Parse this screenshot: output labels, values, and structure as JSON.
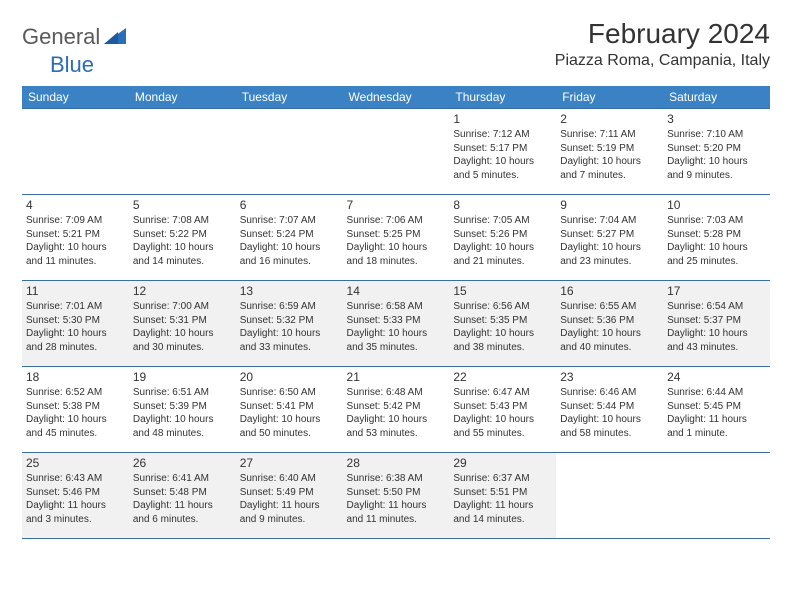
{
  "logo": {
    "text1": "General",
    "text2": "Blue",
    "accent": "#2a6db8",
    "gray": "#5a5a5a"
  },
  "title": "February 2024",
  "location": "Piazza Roma, Campania, Italy",
  "colors": {
    "header_bg": "#3b82c4",
    "header_fg": "#ffffff",
    "rule": "#3b6ea0",
    "shaded_bg": "#f1f1f1",
    "text": "#333333"
  },
  "weekdays": [
    "Sunday",
    "Monday",
    "Tuesday",
    "Wednesday",
    "Thursday",
    "Friday",
    "Saturday"
  ],
  "weeks": [
    {
      "shaded": false,
      "days": [
        null,
        null,
        null,
        null,
        {
          "n": "1",
          "sunrise": "7:12 AM",
          "sunset": "5:17 PM",
          "daylight": "10 hours and 5 minutes."
        },
        {
          "n": "2",
          "sunrise": "7:11 AM",
          "sunset": "5:19 PM",
          "daylight": "10 hours and 7 minutes."
        },
        {
          "n": "3",
          "sunrise": "7:10 AM",
          "sunset": "5:20 PM",
          "daylight": "10 hours and 9 minutes."
        }
      ]
    },
    {
      "shaded": false,
      "days": [
        {
          "n": "4",
          "sunrise": "7:09 AM",
          "sunset": "5:21 PM",
          "daylight": "10 hours and 11 minutes."
        },
        {
          "n": "5",
          "sunrise": "7:08 AM",
          "sunset": "5:22 PM",
          "daylight": "10 hours and 14 minutes."
        },
        {
          "n": "6",
          "sunrise": "7:07 AM",
          "sunset": "5:24 PM",
          "daylight": "10 hours and 16 minutes."
        },
        {
          "n": "7",
          "sunrise": "7:06 AM",
          "sunset": "5:25 PM",
          "daylight": "10 hours and 18 minutes."
        },
        {
          "n": "8",
          "sunrise": "7:05 AM",
          "sunset": "5:26 PM",
          "daylight": "10 hours and 21 minutes."
        },
        {
          "n": "9",
          "sunrise": "7:04 AM",
          "sunset": "5:27 PM",
          "daylight": "10 hours and 23 minutes."
        },
        {
          "n": "10",
          "sunrise": "7:03 AM",
          "sunset": "5:28 PM",
          "daylight": "10 hours and 25 minutes."
        }
      ]
    },
    {
      "shaded": true,
      "days": [
        {
          "n": "11",
          "sunrise": "7:01 AM",
          "sunset": "5:30 PM",
          "daylight": "10 hours and 28 minutes."
        },
        {
          "n": "12",
          "sunrise": "7:00 AM",
          "sunset": "5:31 PM",
          "daylight": "10 hours and 30 minutes."
        },
        {
          "n": "13",
          "sunrise": "6:59 AM",
          "sunset": "5:32 PM",
          "daylight": "10 hours and 33 minutes."
        },
        {
          "n": "14",
          "sunrise": "6:58 AM",
          "sunset": "5:33 PM",
          "daylight": "10 hours and 35 minutes."
        },
        {
          "n": "15",
          "sunrise": "6:56 AM",
          "sunset": "5:35 PM",
          "daylight": "10 hours and 38 minutes."
        },
        {
          "n": "16",
          "sunrise": "6:55 AM",
          "sunset": "5:36 PM",
          "daylight": "10 hours and 40 minutes."
        },
        {
          "n": "17",
          "sunrise": "6:54 AM",
          "sunset": "5:37 PM",
          "daylight": "10 hours and 43 minutes."
        }
      ]
    },
    {
      "shaded": false,
      "days": [
        {
          "n": "18",
          "sunrise": "6:52 AM",
          "sunset": "5:38 PM",
          "daylight": "10 hours and 45 minutes."
        },
        {
          "n": "19",
          "sunrise": "6:51 AM",
          "sunset": "5:39 PM",
          "daylight": "10 hours and 48 minutes."
        },
        {
          "n": "20",
          "sunrise": "6:50 AM",
          "sunset": "5:41 PM",
          "daylight": "10 hours and 50 minutes."
        },
        {
          "n": "21",
          "sunrise": "6:48 AM",
          "sunset": "5:42 PM",
          "daylight": "10 hours and 53 minutes."
        },
        {
          "n": "22",
          "sunrise": "6:47 AM",
          "sunset": "5:43 PM",
          "daylight": "10 hours and 55 minutes."
        },
        {
          "n": "23",
          "sunrise": "6:46 AM",
          "sunset": "5:44 PM",
          "daylight": "10 hours and 58 minutes."
        },
        {
          "n": "24",
          "sunrise": "6:44 AM",
          "sunset": "5:45 PM",
          "daylight": "11 hours and 1 minute."
        }
      ]
    },
    {
      "shaded": true,
      "days": [
        {
          "n": "25",
          "sunrise": "6:43 AM",
          "sunset": "5:46 PM",
          "daylight": "11 hours and 3 minutes."
        },
        {
          "n": "26",
          "sunrise": "6:41 AM",
          "sunset": "5:48 PM",
          "daylight": "11 hours and 6 minutes."
        },
        {
          "n": "27",
          "sunrise": "6:40 AM",
          "sunset": "5:49 PM",
          "daylight": "11 hours and 9 minutes."
        },
        {
          "n": "28",
          "sunrise": "6:38 AM",
          "sunset": "5:50 PM",
          "daylight": "11 hours and 11 minutes."
        },
        {
          "n": "29",
          "sunrise": "6:37 AM",
          "sunset": "5:51 PM",
          "daylight": "11 hours and 14 minutes."
        },
        null,
        null
      ]
    }
  ],
  "labels": {
    "sunrise": "Sunrise:",
    "sunset": "Sunset:",
    "daylight": "Daylight:"
  }
}
